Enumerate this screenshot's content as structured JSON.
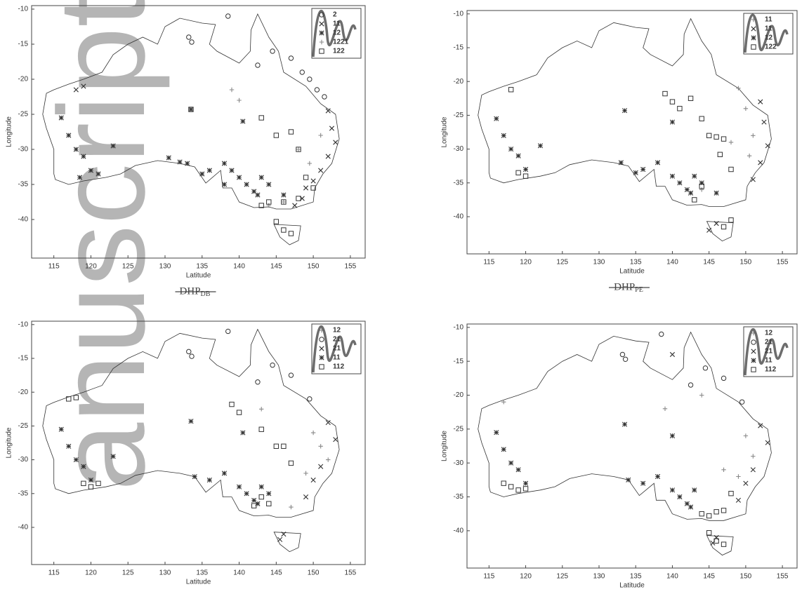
{
  "watermark": "anuscript",
  "chart_data": [
    {
      "type": "scatter",
      "xlabel": "Latitude",
      "ylabel": "Longitude",
      "xlim": [
        112,
        157
      ],
      "ylim": [
        -45.5,
        -9.5
      ],
      "xticks": [
        115,
        120,
        125,
        130,
        135,
        140,
        145,
        150,
        155
      ],
      "yticks": [
        -40,
        -35,
        -30,
        -25,
        -20,
        -15,
        -10
      ],
      "annotation": "DHP",
      "annotation_sub": "DB",
      "series": [
        {
          "name": "2",
          "marker": "circle",
          "color": "#333",
          "x": [
            133.2,
            133.6,
            138.5,
            142.5,
            144.5,
            147,
            148.5,
            149.5,
            150.5,
            151.5
          ],
          "y": [
            -14,
            -14.7,
            -11,
            -18,
            -16,
            -17,
            -19,
            -20,
            -21.5,
            -22.5
          ]
        },
        {
          "name": "11",
          "marker": "x",
          "color": "#333",
          "x": [
            152,
            152.5,
            153,
            152,
            151,
            150,
            149,
            148.5,
            147.5,
            119,
            118
          ],
          "y": [
            -24.5,
            -27,
            -29,
            -31,
            -33,
            -34.5,
            -35.5,
            -37,
            -38,
            -21,
            -21.5
          ]
        },
        {
          "name": "12",
          "marker": "star",
          "color": "#333",
          "x": [
            116,
            117,
            118,
            119,
            120,
            118.5,
            121,
            123,
            133.5,
            138,
            140,
            141,
            142,
            143,
            138,
            136,
            135,
            133,
            130.5,
            132,
            140.5,
            142.5,
            144,
            139,
            146
          ],
          "y": [
            -25.5,
            -28,
            -30,
            -31,
            -33,
            -34,
            -33.5,
            -29.5,
            -24.3,
            -32,
            -34,
            -35,
            -36,
            -34,
            -35,
            -33,
            -33.5,
            -32,
            -31.2,
            -31.8,
            -26,
            -36.5,
            -35,
            -33,
            -36.5
          ]
        },
        {
          "name": "1221",
          "marker": "plus",
          "color": "#888",
          "x": [
            139,
            140,
            148,
            149.5,
            151,
            146,
            144
          ],
          "y": [
            -21.5,
            -23,
            -30,
            -32,
            -28,
            -37.5,
            -38
          ]
        },
        {
          "name": "122",
          "marker": "square",
          "color": "#333",
          "x": [
            133.5,
            143,
            145,
            147,
            148,
            143,
            144,
            146,
            148,
            149,
            150,
            145,
            146,
            147
          ],
          "y": [
            -24.3,
            -25.5,
            -28,
            -27.5,
            -30,
            -38,
            -37.5,
            -37.5,
            -37,
            -34,
            -35.5,
            -40.3,
            -41.5,
            -42
          ]
        }
      ]
    },
    {
      "type": "scatter",
      "xlabel": "Latitude",
      "ylabel": "Longitude",
      "xlim": [
        112,
        157
      ],
      "ylim": [
        -45.5,
        -9.5
      ],
      "xticks": [
        115,
        120,
        125,
        130,
        135,
        140,
        145,
        150,
        155
      ],
      "yticks": [
        -40,
        -35,
        -30,
        -25,
        -20,
        -15,
        -10
      ],
      "annotation": "DHP",
      "annotation_sub": "PE",
      "series": [
        {
          "name": "11",
          "marker": "plus",
          "color": "#888",
          "x": [
            149,
            150,
            151,
            150.5,
            148,
            144
          ],
          "y": [
            -21,
            -24,
            -28,
            -31,
            -29,
            -36
          ]
        },
        {
          "name": "11",
          "marker": "x",
          "color": "#333",
          "x": [
            152.5,
            153,
            152,
            151,
            146,
            145,
            152
          ],
          "y": [
            -26,
            -29.5,
            -32,
            -34.5,
            -41,
            -42,
            -23
          ]
        },
        {
          "name": "12",
          "marker": "star",
          "color": "#333",
          "x": [
            116,
            117,
            118,
            119,
            120,
            122,
            133.5,
            138,
            140,
            141,
            142,
            143,
            136,
            135,
            133,
            140,
            142.5,
            144,
            146
          ],
          "y": [
            -25.5,
            -28,
            -30,
            -31,
            -33,
            -29.5,
            -24.3,
            -32,
            -34,
            -35,
            -36,
            -34,
            -33,
            -33.5,
            -32,
            -26,
            -36.5,
            -35,
            -36.5
          ]
        },
        {
          "name": "122",
          "marker": "square",
          "color": "#333",
          "x": [
            139,
            140,
            141,
            142.5,
            144,
            145,
            146,
            147,
            146.5,
            148,
            144,
            143,
            118,
            120,
            119,
            148,
            147
          ],
          "y": [
            -21.8,
            -23,
            -24,
            -22.5,
            -25.5,
            -28,
            -28.2,
            -28.5,
            -30.8,
            -33,
            -35.5,
            -37.5,
            -21.2,
            -34,
            -33.5,
            -40.5,
            -41.5
          ]
        }
      ]
    },
    {
      "type": "scatter",
      "xlabel": "Latitude",
      "ylabel": "Longitude",
      "xlim": [
        112,
        157
      ],
      "ylim": [
        -45.5,
        -9.5
      ],
      "xticks": [
        115,
        120,
        125,
        130,
        135,
        140,
        145,
        150,
        155
      ],
      "yticks": [
        -40,
        -35,
        -30,
        -25,
        -20,
        -15,
        -10
      ],
      "series": [
        {
          "name": "12",
          "marker": "plus",
          "color": "#888",
          "x": [
            150,
            151,
            152,
            149,
            147,
            143
          ],
          "y": [
            -26,
            -28,
            -30,
            -32,
            -37,
            -22.5
          ]
        },
        {
          "name": "21",
          "marker": "circle",
          "color": "#333",
          "x": [
            133.2,
            133.6,
            138.5,
            142.5,
            144.5,
            147,
            149.5
          ],
          "y": [
            -14,
            -14.7,
            -11,
            -18.5,
            -16,
            -17.5,
            -21
          ]
        },
        {
          "name": "21",
          "marker": "x",
          "color": "#333",
          "x": [
            152,
            153,
            151,
            150,
            149,
            146,
            145.5
          ],
          "y": [
            -24.5,
            -27,
            -31,
            -33,
            -35.5,
            -41,
            -41.8
          ]
        },
        {
          "name": "11",
          "marker": "star",
          "color": "#333",
          "x": [
            116,
            117,
            118,
            119,
            120,
            123,
            133.5,
            138,
            140,
            141,
            142,
            143,
            136,
            134,
            140.5,
            142.5,
            144
          ],
          "y": [
            -25.5,
            -28,
            -30,
            -31,
            -33,
            -29.5,
            -24.3,
            -32,
            -34,
            -35,
            -36,
            -34,
            -33,
            -32.5,
            -26,
            -36.5,
            -35
          ]
        },
        {
          "name": "112",
          "marker": "square",
          "color": "#333",
          "x": [
            117,
            118,
            119,
            120,
            121,
            139,
            140,
            143,
            145,
            146,
            147,
            143,
            144,
            142
          ],
          "y": [
            -21,
            -20.8,
            -33.5,
            -34,
            -33.5,
            -21.8,
            -23,
            -25.5,
            -28,
            -28,
            -30.5,
            -35.5,
            -36.5,
            -36.8
          ]
        }
      ]
    },
    {
      "type": "scatter",
      "xlabel": "Latitude",
      "ylabel": "Longitude",
      "xlim": [
        112,
        157
      ],
      "ylim": [
        -45.5,
        -9.5
      ],
      "xticks": [
        115,
        120,
        125,
        130,
        135,
        140,
        145,
        150,
        155
      ],
      "yticks": [
        -40,
        -35,
        -30,
        -25,
        -20,
        -15,
        -10
      ],
      "series": [
        {
          "name": "12",
          "marker": "plus",
          "color": "#888",
          "x": [
            150,
            151,
            149,
            147,
            139,
            144,
            117
          ],
          "y": [
            -26,
            -29,
            -32,
            -31,
            -22,
            -20,
            -21
          ]
        },
        {
          "name": "21",
          "marker": "circle",
          "color": "#333",
          "x": [
            133.2,
            133.6,
            138.5,
            142.5,
            144.5,
            147,
            149.5
          ],
          "y": [
            -14,
            -14.7,
            -11,
            -18.5,
            -16,
            -17.5,
            -21
          ]
        },
        {
          "name": "21",
          "marker": "x",
          "color": "#333",
          "x": [
            152,
            153,
            151,
            150,
            149,
            146,
            145.5,
            140
          ],
          "y": [
            -24.5,
            -27,
            -31,
            -33,
            -35.5,
            -41,
            -41.8,
            -14
          ]
        },
        {
          "name": "11",
          "marker": "star",
          "color": "#333",
          "x": [
            116,
            117,
            118,
            119,
            120,
            133.5,
            138,
            140,
            141,
            142,
            143,
            136,
            134,
            140,
            142.5
          ],
          "y": [
            -25.5,
            -28,
            -30,
            -31,
            -33,
            -24.3,
            -32,
            -34,
            -35,
            -36,
            -34,
            -33,
            -32.5,
            -26,
            -36.5
          ]
        },
        {
          "name": "112",
          "marker": "square",
          "color": "#333",
          "x": [
            117,
            118,
            119,
            120,
            148,
            144,
            145,
            146,
            147,
            145,
            146,
            147
          ],
          "y": [
            -33,
            -33.5,
            -34,
            -33.8,
            -34.5,
            -37.5,
            -37.8,
            -37.2,
            -37,
            -40.3,
            -41.5,
            -42
          ]
        }
      ]
    }
  ]
}
